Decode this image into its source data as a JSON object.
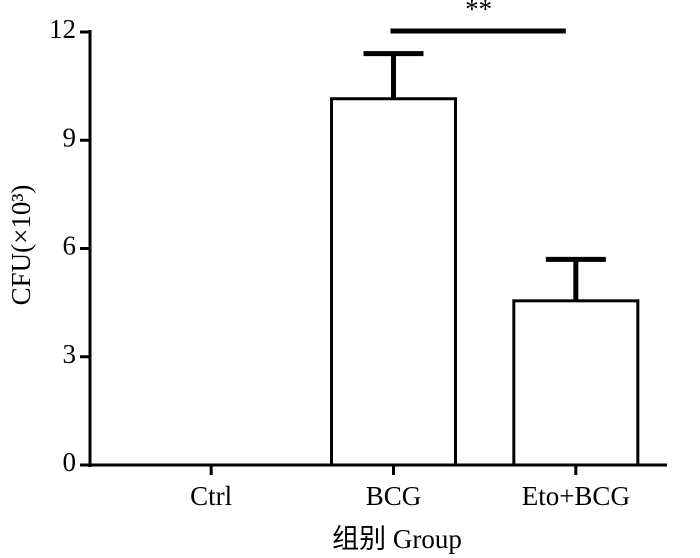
{
  "chart_data": {
    "type": "bar",
    "categories": [
      "Ctrl",
      "BCG",
      "Eto+BCG"
    ],
    "values": [
      0,
      10.15,
      4.55
    ],
    "errors": [
      0,
      1.25,
      1.15
    ],
    "color": "#ffffff",
    "ylim": [
      0,
      12
    ],
    "yticks": [
      0,
      3,
      6,
      9,
      12
    ],
    "y_label": "CFU(×10³)",
    "x_label": "组别  Group",
    "annotation": "**"
  }
}
